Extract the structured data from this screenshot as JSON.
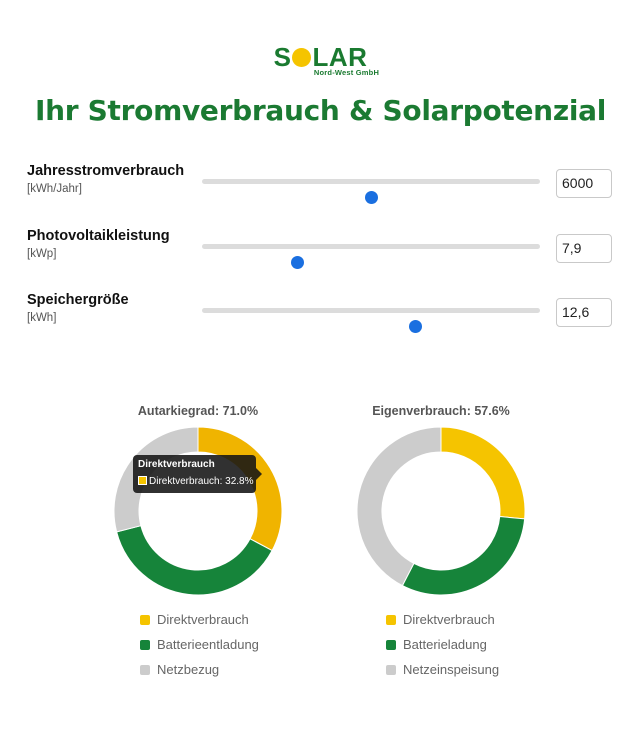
{
  "logo": {
    "word_pre": "S",
    "word_post": "LAR",
    "subtitle": "Nord-West GmbH"
  },
  "page_title": "Ihr Stromverbrauch & Solarpotenzial",
  "controls": [
    {
      "label": "Jahresstromverbrauch",
      "unit": "[kWh/Jahr]",
      "value": "6000",
      "fraction": 0.5
    },
    {
      "label": "Photovoltaikleistung",
      "unit": "[kWp]",
      "value": "7,9",
      "fraction": 0.28
    },
    {
      "label": "Speichergröße",
      "unit": "[kWh]",
      "value": "12,6",
      "fraction": 0.63
    }
  ],
  "chart_data": [
    {
      "type": "doughnut",
      "title": "Autarkiegrad: 71.0%",
      "labels": [
        "Direktverbrauch",
        "Batterieentladung",
        "Netzbezug"
      ],
      "values": [
        32.8,
        38.2,
        29.0
      ],
      "colors": [
        "#f0b400",
        "#16843a",
        "#cccccc"
      ],
      "legend_colors": [
        "#f5c400",
        "#16843a",
        "#cccccc"
      ]
    },
    {
      "type": "doughnut",
      "title": "Eigenverbrauch: 57.6%",
      "labels": [
        "Direktverbrauch",
        "Batterieladung",
        "Netzeinspeisung"
      ],
      "values": [
        26.5,
        31.1,
        42.4
      ],
      "colors": [
        "#f5c400",
        "#16843a",
        "#cccccc"
      ],
      "legend_colors": [
        "#f5c400",
        "#16843a",
        "#cccccc"
      ]
    }
  ],
  "tooltip": {
    "title": "Direktverbrauch",
    "text": "Direktverbrauch: 32.8%",
    "swatch_color": "#f5c400"
  },
  "colors": {
    "brand_green": "#1b7a32",
    "accent_blue": "#1a6fe0",
    "sun_yellow": "#f5c400"
  }
}
